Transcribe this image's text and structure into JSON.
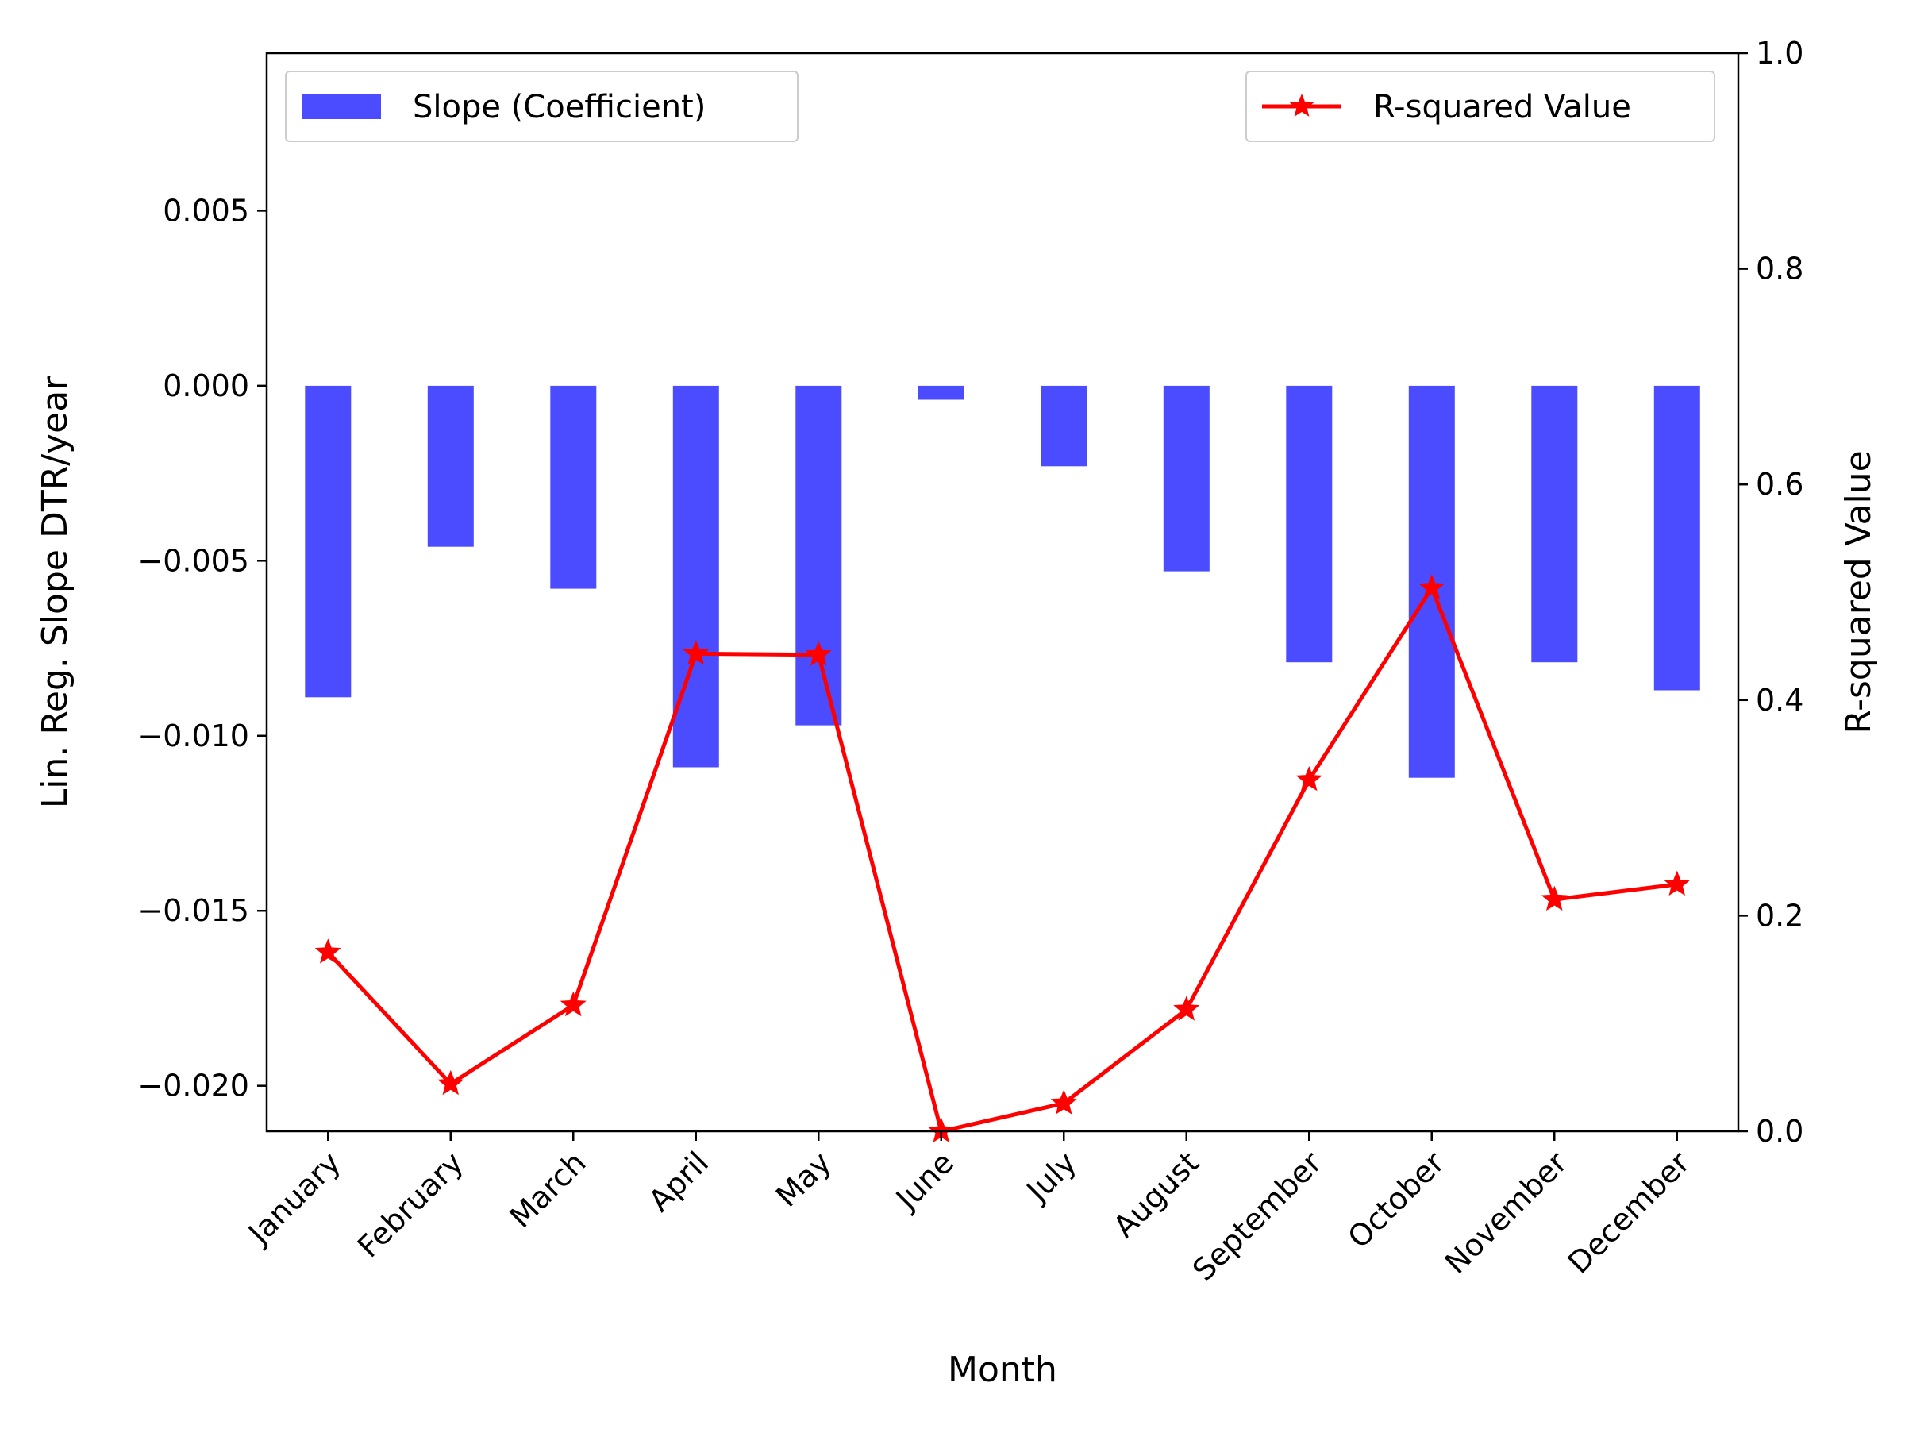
{
  "chart_data": {
    "type": "bar",
    "xlabel": "Month",
    "categories": [
      "January",
      "February",
      "March",
      "April",
      "May",
      "June",
      "July",
      "August",
      "September",
      "October",
      "November",
      "December"
    ],
    "series": [
      {
        "name": "Slope (Coefficient)",
        "type": "bar",
        "axis": "left",
        "color": "#4b4bff",
        "values": [
          -0.0089,
          -0.0046,
          -0.0058,
          -0.0109,
          -0.0097,
          -0.0004,
          -0.0023,
          -0.0053,
          -0.0079,
          -0.0112,
          -0.0079,
          -0.0087
        ]
      },
      {
        "name": "R-squared Value",
        "type": "line",
        "marker": "star",
        "axis": "right",
        "color": "#ff0000",
        "values": [
          0.166,
          0.044,
          0.117,
          0.443,
          0.442,
          0.0,
          0.026,
          0.113,
          0.326,
          0.504,
          0.215,
          0.229
        ]
      }
    ],
    "y_left": {
      "label": "Lin. Reg. Slope DTR/year",
      "range": [
        -0.0213,
        0.0095
      ],
      "ticks": [
        0.005,
        0.0,
        -0.005,
        -0.01,
        -0.015,
        -0.02
      ],
      "tick_labels": [
        "0.005",
        "0.000",
        "−0.005",
        "−0.010",
        "−0.015",
        "−0.020"
      ]
    },
    "y_right": {
      "label": "R-squared Value",
      "range": [
        0.0,
        1.0
      ],
      "ticks": [
        0.0,
        0.2,
        0.4,
        0.6,
        0.8,
        1.0
      ],
      "tick_labels": [
        "0.0",
        "0.2",
        "0.4",
        "0.6",
        "0.8",
        "1.0"
      ]
    },
    "legends": [
      {
        "position": "top-left",
        "series": "Slope (Coefficient)"
      },
      {
        "position": "top-right",
        "series": "R-squared Value"
      }
    ],
    "grid": false
  }
}
